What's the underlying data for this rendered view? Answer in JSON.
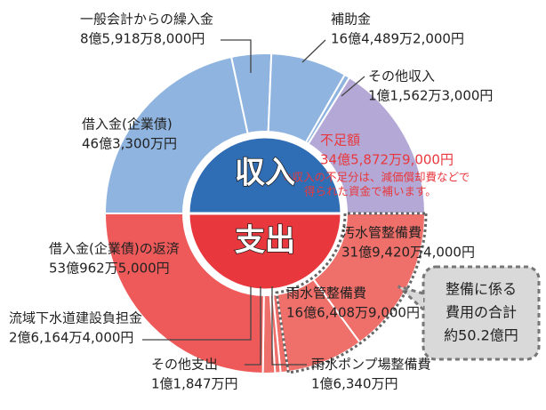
{
  "chart_data": {
    "type": "donut",
    "series": [
      {
        "name": "収入",
        "color": "#2f6db5",
        "categories": [
          "借入金(企業債)",
          "一般会計からの繰入金",
          "補助金",
          "その他収入",
          "不足額"
        ],
        "values": [
          4633000000,
          859188000,
          1644892000,
          115623000,
          3458729000
        ],
        "value_labels": [
          "46億3,300万円",
          "8億5,918万8,000円",
          "16億4,489万2,000円",
          "1億1,562万3,000円",
          "34億5,872万9,000円"
        ],
        "colors": [
          "#8fb4e0",
          "#8fb4e0",
          "#8fb4e0",
          "#8fb4e0",
          "#b4a9d6"
        ]
      },
      {
        "name": "支出",
        "color": "#e8383d",
        "categories": [
          "汚水管整備費",
          "雨水管整備費",
          "雨水ポンプ場整備費",
          "その他支出",
          "流域下水道建設負担金",
          "借入金(企業債)の返済"
        ],
        "values": [
          3194204000,
          1664089000,
          163400000,
          118470000,
          261644000,
          5309625000
        ],
        "value_labels": [
          "31億9,420万4,000円",
          "16億6,408万9,000円",
          "1億6,340万円",
          "1億1,847万円",
          "2億6,164万4,000円",
          "53億962万5,000円"
        ],
        "colors": [
          "#ef6f6a",
          "#ef6f6a",
          "#ef6f6a",
          "#ef6f6a",
          "#ef6f6a",
          "#ee5a5a"
        ]
      }
    ],
    "note": [
      "※収入の不足分は、減価償却費などで",
      "得られた資金で補います。"
    ],
    "callout": [
      "整備に係る",
      "費用の合計",
      "約50.2億円"
    ]
  }
}
